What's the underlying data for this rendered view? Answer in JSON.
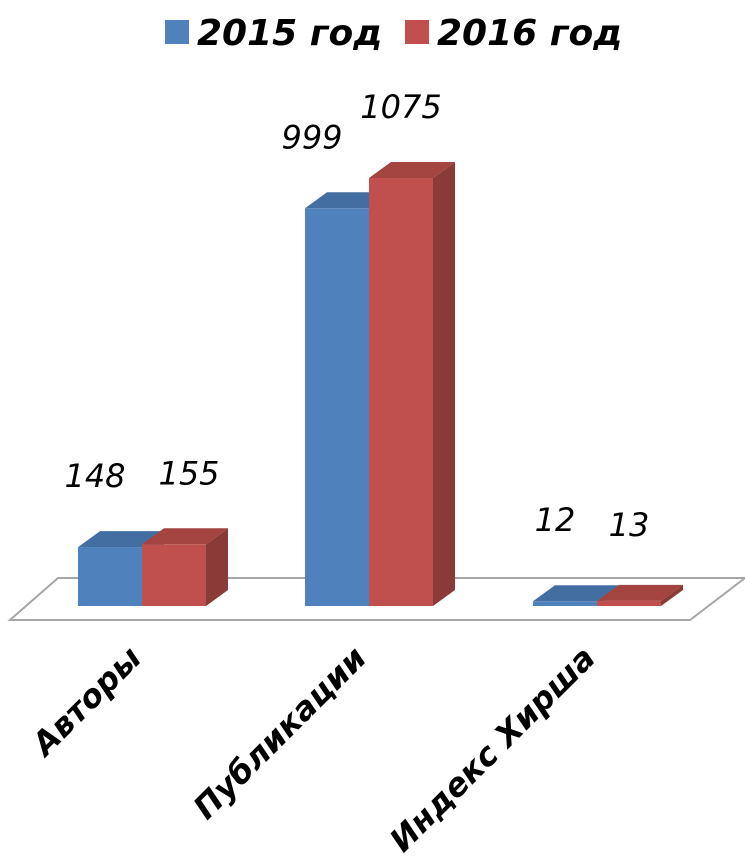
{
  "chart_data": {
    "type": "bar",
    "categories": [
      "Авторы",
      "Публикации",
      "Индекс Хирша"
    ],
    "series": [
      {
        "name": "2015 год",
        "values": [
          148,
          999,
          12
        ],
        "color": "#4F81BD"
      },
      {
        "name": "2016 год",
        "values": [
          155,
          1075,
          13
        ],
        "color": "#C0504D"
      }
    ],
    "legend_position": "top",
    "grid": false,
    "style": "3d-clustered-column"
  }
}
